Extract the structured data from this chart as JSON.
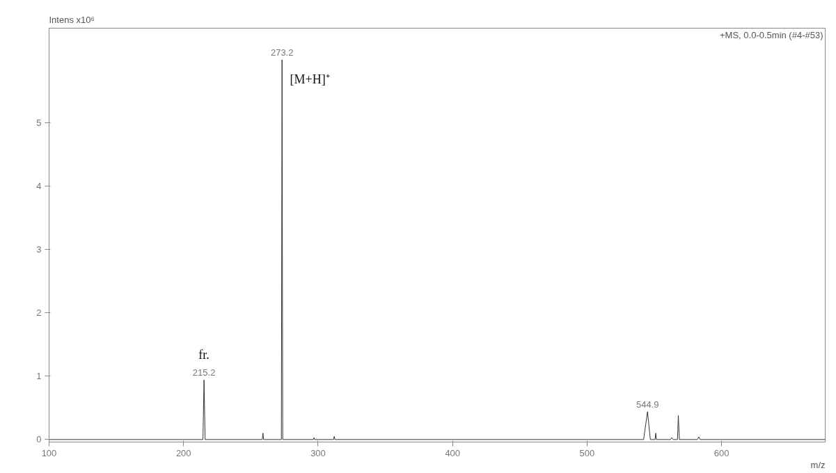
{
  "chart_data": {
    "type": "line",
    "title": "+MS, 0.0-0.5min (#4-#53)",
    "xlabel": "m/z",
    "ylabel": "Intens x10⁶",
    "x": [
      100,
      214.4,
      215.2,
      216,
      258.5,
      259,
      259.5,
      272.7,
      273.2,
      273.7,
      296.5,
      297,
      297.5,
      311.5,
      312,
      312.5,
      542,
      544.9,
      547,
      550.5,
      551,
      551.5,
      562,
      563,
      564,
      567.2,
      567.8,
      568.6,
      582,
      583,
      584,
      677
    ],
    "series": [
      {
        "color": "#333333",
        "values": [
          0,
          0,
          0.94,
          0,
          0,
          0.1,
          0,
          0,
          6.0,
          0,
          0,
          0.03,
          0,
          0,
          0.05,
          0,
          0,
          0.44,
          0,
          0,
          0.1,
          0,
          0,
          0.03,
          0,
          0,
          0.38,
          0,
          0,
          0.04,
          0,
          0
        ]
      }
    ],
    "xlim": [
      100,
      677
    ],
    "ylim": [
      -0.04,
      6.5
    ],
    "xticks": [
      100,
      200,
      300,
      400,
      500,
      600
    ],
    "yticks": [
      0,
      1,
      2,
      3,
      4,
      5
    ],
    "annotations": [
      {
        "text": "273.2",
        "x": 273.2,
        "y": 6.0
      },
      {
        "text": "215.2",
        "x": 215.2,
        "y": 0.94
      },
      {
        "text": "544.9",
        "x": 544.9,
        "y": 0.44
      },
      {
        "text": "[M+H]⁺",
        "x": 273.2,
        "y": 6.0
      },
      {
        "text": "fr.",
        "x": 215.2,
        "y": 0.94
      }
    ],
    "grid": false,
    "marker": "none",
    "line_style": "solid"
  }
}
